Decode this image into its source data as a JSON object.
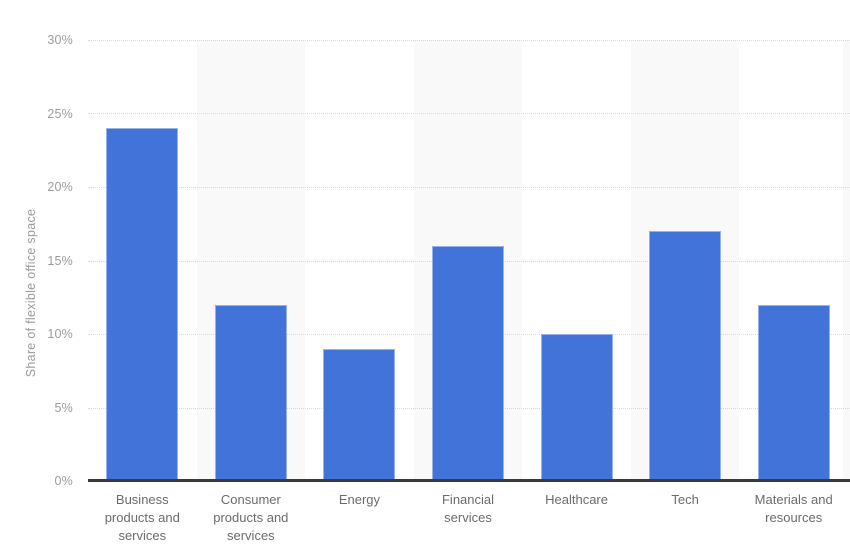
{
  "chart_data": {
    "type": "bar",
    "title": "",
    "xlabel": "",
    "ylabel": "Share of flexible office space",
    "ylim": [
      0,
      30
    ],
    "ytick_step": 5,
    "ytick_labels": [
      "0%",
      "5%",
      "10%",
      "15%",
      "20%",
      "25%",
      "30%"
    ],
    "grid": "horizontal-dotted",
    "legend": "none",
    "plot_bands": "alternating vertical bands behind columns 2, 4, 6 plus cropped sliver at right edge",
    "categories": [
      "Business products and services",
      "Consumer products and services",
      "Energy",
      "Financial services",
      "Healthcare",
      "Tech",
      "Materials and resources"
    ],
    "category_label_lines": [
      "Business\nproducts and\nservices",
      "Consumer\nproducts and\nservices",
      "Energy",
      "Financial\nservices",
      "Healthcare",
      "Tech",
      "Materials and\nresources"
    ],
    "values": [
      24,
      12,
      9,
      16,
      10,
      17,
      12
    ],
    "unit": "%",
    "colors": {
      "bar": "#4273d8",
      "band": "#f9f9f9",
      "grid": "#d9d9d9",
      "axis": "#3a3a3e",
      "tick_text": "#9b9b9b",
      "category_text": "#6b6b6b"
    }
  }
}
